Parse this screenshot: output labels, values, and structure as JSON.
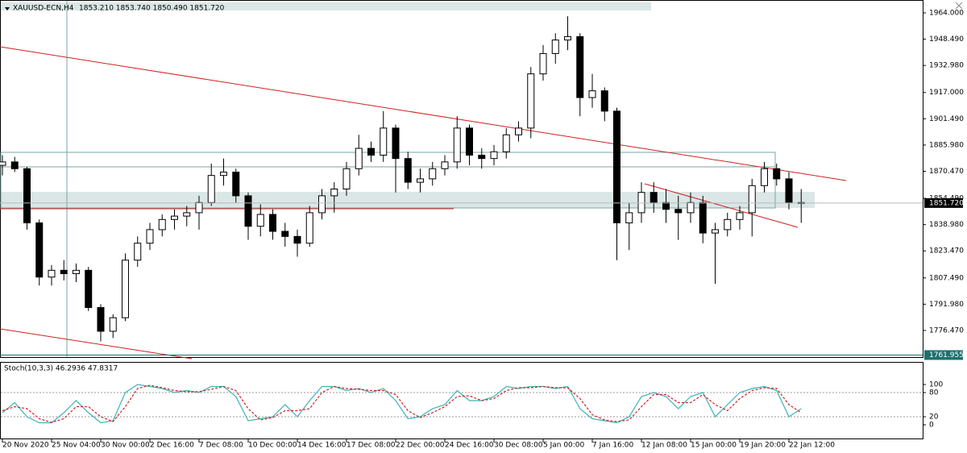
{
  "chart_data": [
    {
      "type": "candlestick",
      "symbol": "XAUUSD-ECN,H4",
      "ohlc_header": "1853.210 1853.740 1850.490 1851.720",
      "categories": [
        "20 Nov 2020",
        null,
        null,
        null,
        "25 Nov 04:00",
        null,
        null,
        null,
        "30 Nov 00:00",
        null,
        null,
        null,
        "2 Dec 16:00",
        null,
        null,
        null,
        "7 Dec 08:00",
        null,
        null,
        null,
        "10 Dec 00:00",
        null,
        null,
        null,
        "14 Dec 16:00",
        null,
        null,
        null,
        "17 Dec 08:00",
        null,
        null,
        null,
        "22 Dec 00:00",
        null,
        null,
        null,
        "24 Dec 16:00",
        null,
        null,
        null,
        "30 Dec 08:00",
        null,
        null,
        null,
        "5 Jan 00:00",
        null,
        null,
        null,
        "7 Jan 16:00",
        null,
        null,
        null,
        "12 Jan 08:00",
        null,
        null,
        null,
        "15 Jan 00:00",
        null,
        null,
        null,
        "19 Jan 20:00",
        null,
        null,
        null,
        "22 Jan 12:00",
        null
      ],
      "open": [
        1874,
        1876,
        1872,
        1840,
        1808,
        1812,
        1810,
        1812,
        1790,
        1776,
        1784,
        1818,
        1828,
        1836,
        1842,
        1844,
        1846,
        1852,
        1868,
        1870,
        1856,
        1838,
        1845,
        1835,
        1832,
        1828,
        1846,
        1856,
        1860,
        1872,
        1884,
        1880,
        1896,
        1878,
        1864,
        1866,
        1872,
        1876,
        1896,
        1880,
        1878,
        1882,
        1892,
        1896,
        1928,
        1940,
        1948,
        1950,
        1914,
        1918,
        1906,
        1840,
        1846,
        1858,
        1852,
        1848,
        1846,
        1852,
        1834,
        1836,
        1842,
        1846,
        1862,
        1872,
        1866,
        1852
      ],
      "high": [
        1880,
        1879,
        1873,
        1842,
        1815,
        1818,
        1816,
        1814,
        1792,
        1786,
        1822,
        1832,
        1840,
        1845,
        1848,
        1850,
        1856,
        1875,
        1878,
        1872,
        1858,
        1851,
        1848,
        1840,
        1836,
        1850,
        1860,
        1864,
        1876,
        1892,
        1888,
        1906,
        1898,
        1882,
        1872,
        1876,
        1880,
        1903,
        1898,
        1884,
        1886,
        1896,
        1900,
        1932,
        1945,
        1952,
        1962,
        1952,
        1928,
        1920,
        1908,
        1852,
        1864,
        1864,
        1860,
        1856,
        1858,
        1856,
        1840,
        1846,
        1850,
        1866,
        1876,
        1875,
        1870,
        1860
      ],
      "low": [
        1868,
        1870,
        1836,
        1803,
        1803,
        1806,
        1805,
        1788,
        1770,
        1772,
        1782,
        1814,
        1824,
        1832,
        1836,
        1838,
        1836,
        1850,
        1862,
        1852,
        1830,
        1832,
        1830,
        1826,
        1820,
        1826,
        1842,
        1846,
        1856,
        1868,
        1876,
        1876,
        1858,
        1860,
        1858,
        1862,
        1868,
        1872,
        1874,
        1872,
        1874,
        1878,
        1888,
        1890,
        1924,
        1934,
        1942,
        1903,
        1908,
        1900,
        1818,
        1824,
        1840,
        1846,
        1840,
        1830,
        1840,
        1828,
        1804,
        1832,
        1836,
        1832,
        1858,
        1862,
        1848,
        1840
      ],
      "close": [
        1876,
        1872,
        1840,
        1808,
        1812,
        1810,
        1812,
        1790,
        1776,
        1784,
        1818,
        1828,
        1836,
        1842,
        1844,
        1846,
        1852,
        1868,
        1870,
        1856,
        1838,
        1845,
        1835,
        1832,
        1828,
        1846,
        1856,
        1860,
        1872,
        1884,
        1880,
        1896,
        1878,
        1864,
        1866,
        1872,
        1876,
        1896,
        1880,
        1878,
        1882,
        1892,
        1896,
        1928,
        1940,
        1948,
        1950,
        1914,
        1918,
        1906,
        1840,
        1846,
        1858,
        1852,
        1848,
        1846,
        1852,
        1834,
        1836,
        1842,
        1846,
        1862,
        1872,
        1866,
        1852,
        1852
      ],
      "ylim": [
        1760.75,
        1971.62
      ],
      "yticks": [
        {
          "value": 1964.0,
          "label": "1964.000"
        },
        {
          "value": 1948.49,
          "label": "1948.490"
        },
        {
          "value": 1932.98,
          "label": "1932.980"
        },
        {
          "value": 1917.0,
          "label": "1917.000"
        },
        {
          "value": 1901.49,
          "label": "1901.490"
        },
        {
          "value": 1885.98,
          "label": "1885.980"
        },
        {
          "value": 1870.47,
          "label": "1870.470"
        },
        {
          "value": 1854.49,
          "label": "1854.490"
        },
        {
          "value": 1838.98,
          "label": "1838.980"
        },
        {
          "value": 1823.47,
          "label": "1823.470"
        },
        {
          "value": 1807.49,
          "label": "1807.490"
        },
        {
          "value": 1791.98,
          "label": "1791.980"
        },
        {
          "value": 1776.47,
          "label": "1776.470"
        }
      ],
      "price_markers": [
        {
          "value": 1851.72,
          "label": "1851.720",
          "color": "#000000"
        },
        {
          "value": 1761.955,
          "label": "1761.955",
          "color": "#1f6f6f"
        }
      ]
    },
    {
      "type": "line",
      "title": "Stoch(10,3,3) 46.2936 47.8317",
      "series": [
        {
          "color": "#3cb4b4",
          "dashed": false,
          "values": [
            30,
            55,
            20,
            5,
            5,
            30,
            60,
            30,
            5,
            10,
            80,
            100,
            95,
            90,
            80,
            85,
            80,
            95,
            95,
            70,
            10,
            15,
            20,
            50,
            20,
            60,
            95,
            95,
            85,
            90,
            80,
            90,
            60,
            15,
            20,
            40,
            50,
            85,
            60,
            60,
            70,
            95,
            90,
            95,
            95,
            90,
            95,
            40,
            15,
            10,
            5,
            20,
            70,
            80,
            70,
            40,
            70,
            80,
            20,
            50,
            80,
            90,
            95,
            85,
            20,
            40
          ]
        },
        {
          "color": "#d02020",
          "dashed": true,
          "values": [
            35,
            45,
            40,
            15,
            6,
            15,
            45,
            45,
            20,
            8,
            45,
            90,
            98,
            92,
            85,
            82,
            82,
            88,
            95,
            85,
            40,
            12,
            18,
            35,
            35,
            40,
            80,
            95,
            90,
            88,
            85,
            85,
            75,
            35,
            18,
            30,
            45,
            70,
            72,
            60,
            65,
            85,
            92,
            92,
            95,
            92,
            92,
            65,
            25,
            12,
            8,
            12,
            45,
            75,
            75,
            55,
            55,
            75,
            50,
            35,
            65,
            85,
            92,
            90,
            50,
            30
          ]
        }
      ],
      "ylim": [
        -36,
        154
      ],
      "yticks": [
        0,
        20,
        80,
        100
      ],
      "level_lines": [
        20,
        80
      ]
    }
  ]
}
